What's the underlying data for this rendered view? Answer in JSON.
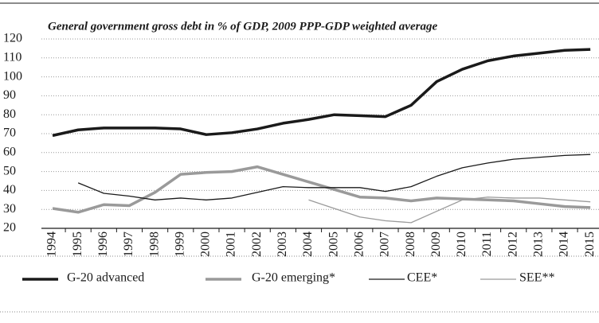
{
  "chart_data": {
    "type": "line",
    "title": "General government gross debt in % of GDP, 2009 PPP-GDP weighted average",
    "categories": [
      "1994",
      "1995",
      "1996",
      "1997",
      "1998",
      "1999",
      "2000",
      "2001",
      "2002",
      "2003",
      "2004",
      "2005",
      "2006",
      "2007",
      "2008",
      "2009",
      "2010",
      "2011",
      "2012",
      "2013",
      "2014",
      "2015"
    ],
    "series": [
      {
        "name": "G-20 advanced",
        "color": "#1a1a1a",
        "line_width": 3.5,
        "values": [
          69,
          72,
          73,
          73,
          73,
          72.5,
          69.5,
          70.5,
          72.5,
          75.5,
          77.5,
          80,
          79.5,
          79,
          85,
          97.5,
          104,
          108.5,
          111,
          112.5,
          114,
          114.5
        ]
      },
      {
        "name": "G-20 emerging*",
        "color": "#9a9a9a",
        "line_width": 3.5,
        "values": [
          30.5,
          28.5,
          32.5,
          32,
          39,
          48.5,
          49.5,
          50,
          52.5,
          48.5,
          44.5,
          40.5,
          36.5,
          36,
          34.5,
          36,
          35.5,
          35,
          34.5,
          33,
          31.5,
          31
        ]
      },
      {
        "name": "CEE*",
        "color": "#1a1a1a",
        "line_width": 1.3,
        "values": [
          null,
          44,
          38.5,
          37,
          35,
          36,
          35,
          36,
          39,
          42,
          41.5,
          41.5,
          41.5,
          39.5,
          42,
          47.5,
          52,
          54.5,
          56.5,
          57.5,
          58.5,
          59
        ]
      },
      {
        "name": "SEE**",
        "color": "#9a9a9a",
        "line_width": 1.3,
        "values": [
          null,
          null,
          null,
          null,
          null,
          null,
          null,
          null,
          null,
          null,
          35,
          30.5,
          26,
          24,
          23,
          29,
          35,
          36.5,
          36,
          36,
          35,
          34
        ]
      }
    ],
    "ylim": [
      20,
      120
    ],
    "yticks": [
      20,
      30,
      40,
      50,
      60,
      70,
      80,
      90,
      100,
      110,
      120
    ],
    "grid": true
  }
}
